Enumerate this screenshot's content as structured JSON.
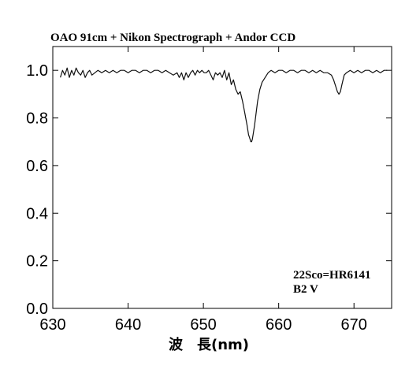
{
  "chart_data": {
    "type": "line",
    "title": "OAO 91cm + Nikon Spectrograph + Andor CCD",
    "xlabel": "波　長(nm)",
    "ylabel": "",
    "xlim": [
      630,
      675
    ],
    "ylim": [
      0.0,
      1.1
    ],
    "xticks": [
      630,
      640,
      650,
      660,
      670
    ],
    "xtick_labels": [
      "630",
      "640",
      "650",
      "660",
      "670"
    ],
    "yticks": [
      0.0,
      0.2,
      0.4,
      0.6,
      0.8,
      1.0
    ],
    "ytick_labels": [
      "0.0",
      "0.2",
      "0.4",
      "0.6",
      "0.8",
      "1.0"
    ],
    "grid": false,
    "annotations": [
      "22Sco=HR6141",
      "B2 V"
    ],
    "series": [
      {
        "x": [
          631.0,
          631.3,
          631.6,
          631.9,
          632.2,
          632.5,
          632.8,
          633.1,
          633.4,
          633.7,
          634.0,
          634.3,
          634.6,
          634.9,
          635.2,
          635.6,
          636.0,
          636.5,
          637.0,
          637.5,
          638.0,
          638.5,
          639.0,
          639.5,
          640.0,
          640.5,
          641.0,
          641.5,
          642.0,
          642.5,
          643.0,
          643.5,
          644.0,
          644.5,
          645.0,
          645.5,
          646.0,
          646.5,
          646.8,
          647.1,
          647.4,
          647.7,
          648.0,
          648.3,
          648.6,
          648.9,
          649.2,
          649.5,
          649.8,
          650.1,
          650.4,
          650.7,
          651.0,
          651.3,
          651.6,
          651.9,
          652.2,
          652.5,
          652.8,
          653.1,
          653.4,
          653.7,
          654.0,
          654.3,
          654.6,
          654.9,
          655.2,
          655.5,
          655.8,
          656.0,
          656.2,
          656.3,
          656.4,
          656.5,
          656.6,
          656.8,
          657.0,
          657.2,
          657.5,
          657.8,
          658.2,
          658.6,
          659.0,
          659.5,
          660.0,
          660.5,
          661.0,
          661.5,
          662.0,
          662.5,
          663.0,
          663.5,
          664.0,
          664.5,
          665.0,
          665.5,
          666.0,
          666.5,
          667.0,
          667.3,
          667.6,
          667.8,
          668.0,
          668.2,
          668.4,
          668.7,
          669.0,
          669.5,
          670.0,
          670.5,
          671.0,
          671.5,
          672.0,
          672.5,
          673.0,
          673.5,
          674.0,
          674.4
        ],
        "y": [
          0.97,
          1.0,
          0.98,
          1.01,
          0.97,
          1.0,
          0.98,
          1.01,
          0.99,
          0.98,
          1.0,
          0.97,
          0.99,
          1.0,
          0.98,
          0.99,
          1.0,
          0.99,
          1.0,
          0.99,
          1.0,
          0.99,
          1.0,
          1.0,
          0.99,
          1.0,
          1.0,
          0.99,
          1.0,
          1.0,
          0.99,
          1.0,
          1.0,
          0.99,
          1.0,
          0.99,
          0.98,
          0.99,
          0.97,
          0.99,
          0.96,
          0.99,
          0.97,
          0.99,
          1.0,
          0.98,
          1.0,
          0.99,
          1.0,
          0.99,
          0.99,
          1.0,
          0.98,
          0.96,
          0.99,
          0.98,
          0.99,
          0.97,
          1.0,
          0.96,
          0.99,
          0.94,
          0.96,
          0.92,
          0.9,
          0.91,
          0.87,
          0.82,
          0.77,
          0.73,
          0.71,
          0.7,
          0.7,
          0.71,
          0.73,
          0.77,
          0.82,
          0.87,
          0.92,
          0.95,
          0.97,
          0.99,
          1.0,
          0.99,
          1.0,
          1.0,
          0.99,
          1.0,
          1.0,
          0.99,
          1.0,
          1.0,
          0.99,
          1.0,
          0.99,
          1.0,
          0.99,
          0.99,
          0.98,
          0.96,
          0.93,
          0.91,
          0.9,
          0.91,
          0.94,
          0.98,
          0.99,
          1.0,
          0.99,
          1.0,
          0.99,
          1.0,
          1.0,
          0.99,
          1.0,
          0.99,
          1.0,
          1.0
        ]
      }
    ]
  }
}
